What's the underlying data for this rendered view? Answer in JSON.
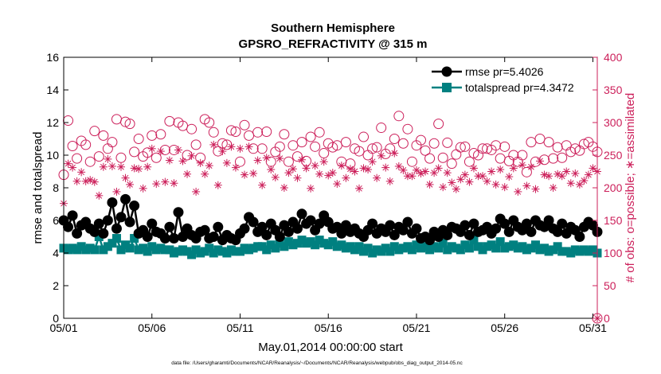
{
  "chart_data": {
    "type": "line",
    "title": "Southern Hemisphere",
    "subtitle": "GPSRO_REFRACTIVITY @ 315 m",
    "xlabel": "May.01,2014 00:00:00 start",
    "ylabel": "rmse and totalspread",
    "y2label": "# of obs: o=possible; ∗=assimilated",
    "footnote": "data file: /Users/gharamti/Documents/NCAR/Reanalysis/~/Documents/NCAR/Reanalysis/webpub/obs_diag_output_2014-05.nc",
    "x_unit": "day of month (fractional, 6-hourly)",
    "xlim": [
      1,
      31.25
    ],
    "ylim": [
      0,
      16
    ],
    "y2lim": [
      0,
      400
    ],
    "x_ticks": [
      1,
      6,
      11,
      16,
      21,
      26,
      31
    ],
    "x_tick_labels": [
      "05/01",
      "05/06",
      "05/11",
      "05/16",
      "05/21",
      "05/26",
      "05/31"
    ],
    "y_ticks": [
      0,
      2,
      4,
      6,
      8,
      10,
      12,
      14,
      16
    ],
    "y_tick_labels": [
      "0",
      "2",
      "4",
      "6",
      "8",
      "10",
      "12",
      "14",
      "16"
    ],
    "y2_ticks": [
      0,
      50,
      100,
      150,
      200,
      250,
      300,
      350,
      400
    ],
    "y2_tick_labels": [
      "0",
      "50",
      "100",
      "150",
      "200",
      "250",
      "300",
      "350",
      "400"
    ],
    "colors": {
      "rmse": "#000000",
      "totalspread": "#008080",
      "obs": "#cc1f5a",
      "axis": "#000000",
      "axis2": "#cc1f5a"
    },
    "series": [
      {
        "name": "rmse",
        "legend": "rmse pr=5.4026",
        "axis": "left",
        "x": [
          1,
          1.25,
          1.5,
          1.75,
          2,
          2.25,
          2.5,
          2.75,
          3,
          3.25,
          3.5,
          3.75,
          4,
          4.25,
          4.5,
          4.75,
          5,
          5.25,
          5.5,
          5.75,
          6,
          6.25,
          6.5,
          6.75,
          7,
          7.25,
          7.5,
          7.75,
          8,
          8.25,
          8.5,
          8.75,
          9,
          9.25,
          9.5,
          9.75,
          10,
          10.25,
          10.5,
          10.75,
          11,
          11.25,
          11.5,
          11.75,
          12,
          12.25,
          12.5,
          12.75,
          13,
          13.25,
          13.5,
          13.75,
          14,
          14.25,
          14.5,
          14.75,
          15,
          15.25,
          15.5,
          15.75,
          16,
          16.25,
          16.5,
          16.75,
          17,
          17.25,
          17.5,
          17.75,
          18,
          18.25,
          18.5,
          18.75,
          19,
          19.25,
          19.5,
          19.75,
          20,
          20.25,
          20.5,
          20.75,
          21,
          21.25,
          21.5,
          21.75,
          22,
          22.25,
          22.5,
          22.75,
          23,
          23.25,
          23.5,
          23.75,
          24,
          24.25,
          24.5,
          24.75,
          25,
          25.25,
          25.5,
          25.75,
          26,
          26.25,
          26.5,
          26.75,
          27,
          27.25,
          27.5,
          27.75,
          28,
          28.25,
          28.5,
          28.75,
          29,
          29.25,
          29.5,
          29.75,
          30,
          30.25,
          30.5,
          30.75,
          31,
          31.25
        ],
        "values": [
          6.0,
          5.6,
          6.3,
          5.2,
          5.7,
          5.9,
          5.5,
          5.3,
          5.8,
          5.2,
          6.0,
          7.1,
          5.5,
          6.2,
          7.3,
          5.9,
          6.9,
          5.2,
          5.4,
          5.0,
          5.8,
          5.3,
          5.2,
          4.9,
          5.6,
          4.9,
          6.5,
          5.0,
          5.5,
          5.1,
          4.9,
          5.3,
          5.4,
          4.9,
          5.0,
          5.6,
          4.8,
          5.1,
          4.9,
          4.8,
          5.2,
          5.5,
          6.2,
          5.9,
          5.3,
          5.6,
          5.1,
          5.8,
          5.4,
          5.0,
          5.7,
          5.3,
          5.9,
          5.5,
          6.4,
          5.8,
          6.0,
          5.4,
          5.8,
          6.3,
          5.9,
          5.5,
          5.6,
          5.2,
          5.7,
          5.3,
          5.5,
          5.2,
          5.0,
          5.4,
          5.8,
          5.2,
          5.5,
          5.3,
          5.7,
          5.1,
          5.6,
          5.4,
          5.9,
          5.2,
          5.5,
          4.9,
          5.0,
          4.8,
          5.3,
          5.0,
          5.4,
          5.1,
          5.6,
          5.5,
          5.3,
          5.7,
          5.1,
          5.8,
          5.3,
          5.4,
          5.6,
          5.2,
          5.5,
          6.1,
          5.8,
          5.3,
          6.0,
          5.6,
          5.4,
          5.8,
          5.3,
          6.0,
          5.7,
          5.6,
          6.0,
          5.5,
          5.3,
          5.8,
          5.2,
          5.6,
          5.4,
          5.0,
          5.6,
          5.9,
          5.7,
          5.3
        ]
      },
      {
        "name": "totalspread",
        "legend": "totalspread pr=4.3472",
        "axis": "left",
        "x": [
          1,
          1.25,
          1.5,
          1.75,
          2,
          2.25,
          2.5,
          2.75,
          3,
          3.25,
          3.5,
          3.75,
          4,
          4.25,
          4.5,
          4.75,
          5,
          5.25,
          5.5,
          5.75,
          6,
          6.25,
          6.5,
          6.75,
          7,
          7.25,
          7.5,
          7.75,
          8,
          8.25,
          8.5,
          8.75,
          9,
          9.25,
          9.5,
          9.75,
          10,
          10.25,
          10.5,
          10.75,
          11,
          11.25,
          11.5,
          11.75,
          12,
          12.25,
          12.5,
          12.75,
          13,
          13.25,
          13.5,
          13.75,
          14,
          14.25,
          14.5,
          14.75,
          15,
          15.25,
          15.5,
          15.75,
          16,
          16.25,
          16.5,
          16.75,
          17,
          17.25,
          17.5,
          17.75,
          18,
          18.25,
          18.5,
          18.75,
          19,
          19.25,
          19.5,
          19.75,
          20,
          20.25,
          20.5,
          20.75,
          21,
          21.25,
          21.5,
          21.75,
          22,
          22.25,
          22.5,
          22.75,
          23,
          23.25,
          23.5,
          23.75,
          24,
          24.25,
          24.5,
          24.75,
          25,
          25.25,
          25.5,
          25.75,
          26,
          26.25,
          26.5,
          26.75,
          27,
          27.25,
          27.5,
          27.75,
          28,
          28.25,
          28.5,
          28.75,
          29,
          29.25,
          29.5,
          29.75,
          30,
          30.25,
          30.5,
          30.75,
          31,
          31.25
        ],
        "values": [
          4.3,
          4.2,
          4.3,
          4.2,
          4.4,
          4.2,
          4.3,
          4.2,
          5.0,
          4.2,
          4.4,
          4.6,
          4.9,
          4.2,
          4.5,
          4.3,
          4.9,
          4.2,
          4.3,
          4.1,
          4.4,
          4.2,
          4.3,
          4.2,
          4.2,
          4.0,
          4.1,
          4.2,
          4.1,
          3.9,
          4.2,
          4.0,
          4.1,
          4.3,
          4.0,
          4.2,
          4.1,
          4.0,
          4.2,
          4.1,
          4.1,
          4.3,
          4.2,
          4.3,
          4.4,
          4.4,
          4.2,
          4.5,
          4.3,
          4.6,
          4.4,
          4.7,
          4.5,
          4.6,
          4.8,
          4.6,
          4.7,
          4.5,
          4.8,
          4.6,
          4.5,
          4.7,
          4.4,
          4.5,
          4.3,
          4.4,
          4.2,
          4.4,
          4.1,
          4.3,
          4.0,
          4.2,
          4.1,
          4.3,
          4.1,
          4.4,
          4.2,
          4.3,
          4.4,
          4.2,
          4.5,
          4.3,
          4.4,
          4.2,
          4.4,
          4.3,
          4.6,
          4.2,
          4.4,
          4.3,
          4.2,
          4.5,
          4.3,
          4.8,
          4.4,
          4.2,
          4.4,
          4.5,
          4.3,
          4.7,
          4.3,
          4.4,
          4.5,
          4.3,
          4.4,
          4.2,
          4.3,
          4.5,
          4.2,
          4.3,
          4.1,
          4.2,
          4.4,
          4.1,
          4.1,
          4.0,
          4.2,
          4.1,
          4.2,
          4.1,
          4.2,
          4.0
        ]
      },
      {
        "name": "obs_possible",
        "legend": "",
        "axis": "right",
        "marker": "circle",
        "x": [
          1,
          1.25,
          1.5,
          1.75,
          2,
          2.25,
          2.5,
          2.75,
          3,
          3.25,
          3.5,
          3.75,
          4,
          4.25,
          4.5,
          4.75,
          5,
          5.25,
          5.5,
          5.75,
          6,
          6.25,
          6.5,
          6.75,
          7,
          7.25,
          7.5,
          7.75,
          8,
          8.25,
          8.5,
          8.75,
          9,
          9.25,
          9.5,
          9.75,
          10,
          10.25,
          10.5,
          10.75,
          11,
          11.25,
          11.5,
          11.75,
          12,
          12.25,
          12.5,
          12.75,
          13,
          13.25,
          13.5,
          13.75,
          14,
          14.25,
          14.5,
          14.75,
          15,
          15.25,
          15.5,
          15.75,
          16,
          16.25,
          16.5,
          16.75,
          17,
          17.25,
          17.5,
          17.75,
          18,
          18.25,
          18.5,
          18.75,
          19,
          19.25,
          19.5,
          19.75,
          20,
          20.25,
          20.5,
          20.75,
          21,
          21.25,
          21.5,
          21.75,
          22,
          22.25,
          22.5,
          22.75,
          23,
          23.25,
          23.5,
          23.75,
          24,
          24.25,
          24.5,
          24.75,
          25,
          25.25,
          25.5,
          25.75,
          26,
          26.25,
          26.5,
          26.75,
          27,
          27.25,
          27.5,
          27.75,
          28,
          28.25,
          28.5,
          28.75,
          29,
          29.25,
          29.5,
          29.75,
          30,
          30.25,
          30.5,
          30.75,
          31,
          31.25
        ],
        "values": [
          220,
          303,
          264,
          245,
          272,
          266,
          240,
          287,
          248,
          280,
          260,
          270,
          305,
          246,
          301,
          298,
          255,
          275,
          248,
          254,
          280,
          246,
          282,
          258,
          302,
          258,
          300,
          295,
          250,
          290,
          266,
          246,
          305,
          300,
          285,
          256,
          268,
          266,
          288,
          286,
          240,
          296,
          280,
          260,
          285,
          260,
          286,
          240,
          255,
          263,
          282,
          240,
          265,
          248,
          270,
          241,
          278,
          263,
          285,
          253,
          268,
          262,
          265,
          240,
          270,
          237,
          260,
          256,
          278,
          250,
          260,
          262,
          292,
          252,
          260,
          275,
          310,
          268,
          290,
          240,
          265,
          273,
          257,
          245,
          268,
          298,
          246,
          269,
          237,
          251,
          262,
          263,
          240,
          253,
          250,
          260,
          260,
          258,
          265,
          245,
          263,
          241,
          250,
          240,
          250,
          224,
          270,
          240,
          275,
          243,
          270,
          245,
          262,
          246,
          265,
          255,
          260,
          257,
          267,
          270,
          263,
          255
        ]
      },
      {
        "name": "obs_assimilated",
        "legend": "",
        "axis": "right",
        "marker": "asterisk",
        "x": [
          1,
          1.25,
          1.5,
          1.75,
          2,
          2.25,
          2.5,
          2.75,
          3,
          3.25,
          3.5,
          3.75,
          4,
          4.25,
          4.5,
          4.75,
          5,
          5.25,
          5.5,
          5.75,
          6,
          6.25,
          6.5,
          6.75,
          7,
          7.25,
          7.5,
          7.75,
          8,
          8.25,
          8.5,
          8.75,
          9,
          9.25,
          9.5,
          9.75,
          10,
          10.25,
          10.5,
          10.75,
          11,
          11.25,
          11.5,
          11.75,
          12,
          12.25,
          12.5,
          12.75,
          13,
          13.25,
          13.5,
          13.75,
          14,
          14.25,
          14.5,
          14.75,
          15,
          15.25,
          15.5,
          15.75,
          16,
          16.25,
          16.5,
          16.75,
          17,
          17.25,
          17.5,
          17.75,
          18,
          18.25,
          18.5,
          18.75,
          19,
          19.25,
          19.5,
          19.75,
          20,
          20.25,
          20.5,
          20.75,
          21,
          21.25,
          21.5,
          21.75,
          22,
          22.25,
          22.5,
          22.75,
          23,
          23.25,
          23.5,
          23.75,
          24,
          24.25,
          24.5,
          24.75,
          25,
          25.25,
          25.5,
          25.75,
          26,
          26.25,
          26.5,
          26.75,
          27,
          27.25,
          27.5,
          27.75,
          28,
          28.25,
          28.5,
          28.75,
          29,
          29.25,
          29.5,
          29.75,
          30,
          30.25,
          30.5,
          30.75,
          31,
          31.25
        ],
        "values": [
          176,
          237,
          231,
          210,
          224,
          210,
          212,
          209,
          188,
          232,
          244,
          233,
          194,
          232,
          215,
          205,
          230,
          229,
          199,
          232,
          260,
          206,
          256,
          209,
          242,
          207,
          258,
          241,
          221,
          249,
          194,
          238,
          221,
          234,
          266,
          204,
          256,
          238,
          263,
          231,
          260,
          220,
          263,
          222,
          242,
          204,
          246,
          228,
          216,
          245,
          200,
          223,
          229,
          215,
          243,
          230,
          199,
          234,
          221,
          240,
          219,
          223,
          206,
          234,
          215,
          229,
          225,
          199,
          230,
          228,
          240,
          215,
          249,
          231,
          210,
          253,
          233,
          227,
          218,
          218,
          227,
          222,
          225,
          205,
          223,
          230,
          201,
          223,
          208,
          198,
          213,
          220,
          209,
          230,
          218,
          218,
          210,
          225,
          205,
          228,
          201,
          217,
          230,
          194,
          235,
          203,
          232,
          198,
          241,
          220,
          218,
          200,
          221,
          218,
          225,
          207,
          222,
          205,
          211,
          220,
          230,
          225
        ]
      }
    ]
  }
}
